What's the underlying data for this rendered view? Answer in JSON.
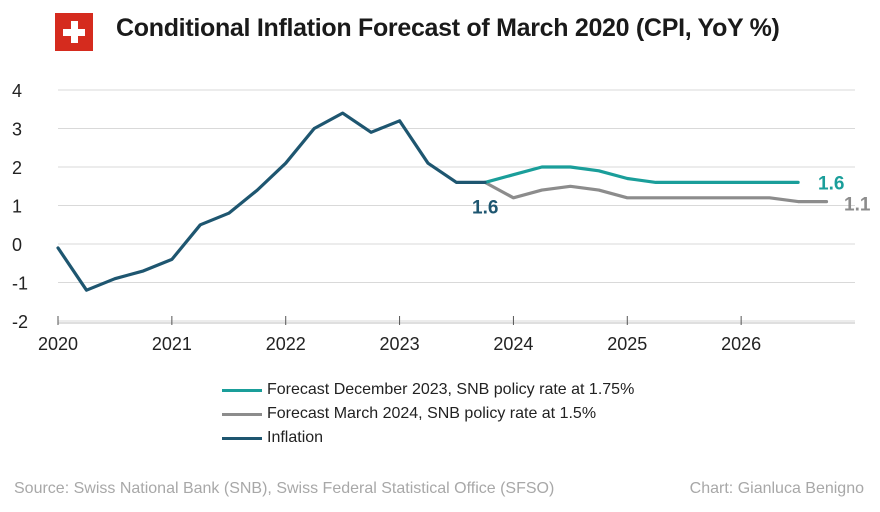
{
  "header": {
    "title": "Conditional Inflation Forecast of March 2020 (CPI, YoY %)",
    "flag_color": "#d52b1e"
  },
  "chart_data": {
    "type": "line",
    "title": "Conditional Inflation Forecast of March 2020 (CPI, YoY %)",
    "xlabel": "",
    "ylabel": "",
    "ylim": [
      -2,
      4
    ],
    "xlim": [
      2020,
      2027
    ],
    "yticks": [
      -2,
      -1,
      0,
      1,
      2,
      3,
      4
    ],
    "xticks": [
      2020,
      2021,
      2022,
      2023,
      2024,
      2025,
      2026
    ],
    "grid": true,
    "legend_position": "bottom",
    "series": [
      {
        "name": "Forecast December 2023, SNB policy rate at 1.75%",
        "color": "#1a9e9a",
        "x": [
          2023.75,
          2024.0,
          2024.25,
          2024.5,
          2024.75,
          2025.0,
          2025.25,
          2025.5,
          2025.75,
          2026.0,
          2026.25,
          2026.5
        ],
        "y": [
          1.6,
          1.8,
          2.0,
          2.0,
          1.9,
          1.7,
          1.6,
          1.6,
          1.6,
          1.6,
          1.6,
          1.6
        ]
      },
      {
        "name": "Forecast March 2024, SNB policy rate at 1.5%",
        "color": "#8c8c8c",
        "x": [
          2023.75,
          2024.0,
          2024.25,
          2024.5,
          2024.75,
          2025.0,
          2025.25,
          2025.5,
          2025.75,
          2026.0,
          2026.25,
          2026.5,
          2026.75
        ],
        "y": [
          1.6,
          1.2,
          1.4,
          1.5,
          1.4,
          1.2,
          1.2,
          1.2,
          1.2,
          1.2,
          1.2,
          1.1,
          1.1
        ]
      },
      {
        "name": "Inflation",
        "color": "#1e5670",
        "x": [
          2020.0,
          2020.25,
          2020.5,
          2020.75,
          2021.0,
          2021.25,
          2021.5,
          2021.75,
          2022.0,
          2022.25,
          2022.5,
          2022.75,
          2023.0,
          2023.25,
          2023.5,
          2023.75
        ],
        "y": [
          -0.1,
          -1.2,
          -0.9,
          -0.7,
          -0.4,
          0.5,
          0.8,
          1.4,
          2.1,
          3.0,
          3.4,
          2.9,
          3.2,
          2.1,
          1.6,
          1.6
        ]
      }
    ],
    "annotations": [
      {
        "text": "1.6",
        "color": "#1e5670"
      },
      {
        "text": "1.6",
        "color": "#1a9e9a"
      },
      {
        "text": "1.1",
        "color": "#8c8c8c"
      }
    ]
  },
  "footer": {
    "source": "Source: Swiss National Bank (SNB), Swiss Federal Statistical Office (SFSO)",
    "credit": "Chart: Gianluca Benigno"
  }
}
